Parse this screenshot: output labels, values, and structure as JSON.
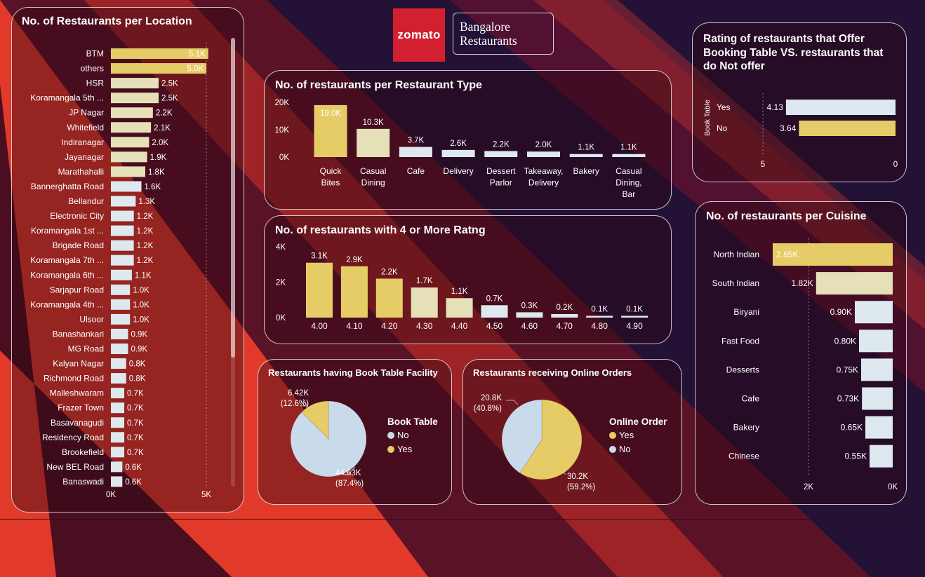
{
  "header": {
    "logo_text": "zomato",
    "title_line1": "Bangalore",
    "title_line2": "Restaurants"
  },
  "colors": {
    "yellow": "#e6cc67",
    "pale": "#e5e0b8",
    "light": "#dde9ee",
    "pie_blue": "#c9dbeb"
  },
  "location_chart": {
    "title": "No. of Restaurants per Location",
    "chart_data": {
      "type": "bar",
      "orientation": "horizontal",
      "categories": [
        "BTM",
        "others",
        "HSR",
        "Koramangala 5th ...",
        "JP Nagar",
        "Whitefield",
        "Indiranagar",
        "Jayanagar",
        "Marathahalli",
        "Bannerghatta Road",
        "Bellandur",
        "Electronic City",
        "Koramangala 1st ...",
        "Brigade Road",
        "Koramangala 7th ...",
        "Koramangala 6th ...",
        "Sarjapur Road",
        "Koramangala 4th ...",
        "Ulsoor",
        "Banashankari",
        "MG Road",
        "Kalyan Nagar",
        "Richmond Road",
        "Malleshwaram",
        "Frazer Town",
        "Basavanagudi",
        "Residency Road",
        "Brookefield",
        "New BEL Road",
        "Banaswadi"
      ],
      "values": [
        5100,
        5000,
        2500,
        2500,
        2200,
        2100,
        2000,
        1900,
        1800,
        1600,
        1300,
        1200,
        1200,
        1200,
        1200,
        1100,
        1000,
        1000,
        1000,
        900,
        900,
        800,
        800,
        700,
        700,
        700,
        700,
        700,
        600,
        600
      ],
      "data_labels": [
        "5.1K",
        "5.0K",
        "2.5K",
        "2.5K",
        "2.2K",
        "2.1K",
        "2.0K",
        "1.9K",
        "1.8K",
        "1.6K",
        "1.3K",
        "1.2K",
        "1.2K",
        "1.2K",
        "1.2K",
        "1.1K",
        "1.0K",
        "1.0K",
        "1.0K",
        "0.9K",
        "0.9K",
        "0.8K",
        "0.8K",
        "0.7K",
        "0.7K",
        "0.7K",
        "0.7K",
        "0.7K",
        "0.6K",
        "0.6K"
      ],
      "xlim": [
        0,
        5000
      ],
      "x_ticks": [
        "0K",
        "5K"
      ]
    }
  },
  "type_chart": {
    "title": "No. of restaurants per Restaurant Type",
    "chart_data": {
      "type": "bar",
      "categories": [
        [
          "Quick",
          "Bites"
        ],
        [
          "Casual",
          "Dining"
        ],
        [
          "Cafe"
        ],
        [
          "Delivery"
        ],
        [
          "Dessert",
          "Parlor"
        ],
        [
          "Takeaway,",
          "Delivery"
        ],
        [
          "Bakery"
        ],
        [
          "Casual",
          "Dining,",
          "Bar"
        ]
      ],
      "values": [
        19000,
        10300,
        3700,
        2600,
        2200,
        2000,
        1100,
        1100
      ],
      "data_labels": [
        "19.0K",
        "10.3K",
        "3.7K",
        "2.6K",
        "2.2K",
        "2.0K",
        "1.1K",
        "1.1K"
      ],
      "ylim": [
        0,
        20000
      ],
      "y_ticks": [
        {
          "v": 0,
          "label": "0K"
        },
        {
          "v": 10000,
          "label": "10K"
        },
        {
          "v": 20000,
          "label": "20K"
        }
      ]
    }
  },
  "rating_chart": {
    "title": "No. of restaurants with 4 or More Ratng",
    "chart_data": {
      "type": "bar",
      "categories": [
        "4.00",
        "4.10",
        "4.20",
        "4.30",
        "4.40",
        "4.50",
        "4.60",
        "4.70",
        "4.80",
        "4.90"
      ],
      "values": [
        3100,
        2900,
        2200,
        1700,
        1100,
        700,
        300,
        200,
        100,
        100
      ],
      "data_labels": [
        "3.1K",
        "2.9K",
        "2.2K",
        "1.7K",
        "1.1K",
        "0.7K",
        "0.3K",
        "0.2K",
        "0.1K",
        "0.1K"
      ],
      "ylim": [
        0,
        4000
      ],
      "y_ticks": [
        {
          "v": 0,
          "label": "0K"
        },
        {
          "v": 2000,
          "label": "2K"
        },
        {
          "v": 4000,
          "label": "4K"
        }
      ]
    }
  },
  "booking_rating_chart": {
    "title_lines": [
      "Rating of restaurants that Offer",
      "Booking Table VS. restaurants that",
      "do Not offer"
    ],
    "chart_data": {
      "type": "bar",
      "orientation": "horizontal",
      "ylabel": "Book Table",
      "categories": [
        "Yes",
        "No"
      ],
      "values": [
        4.13,
        3.64
      ],
      "data_labels": [
        "4.13",
        "3.64"
      ],
      "xlim": [
        5,
        0
      ],
      "x_ticks": [
        "5",
        "0"
      ]
    }
  },
  "cuisine_chart": {
    "title": "No. of restaurants per Cuisine",
    "chart_data": {
      "type": "bar",
      "orientation": "horizontal",
      "categories": [
        "North Indian",
        "South Indian",
        "Biryani",
        "Fast Food",
        "Desserts",
        "Cafe",
        "Bakery",
        "Chinese"
      ],
      "values": [
        2850,
        1820,
        900,
        800,
        750,
        730,
        650,
        550
      ],
      "data_labels": [
        "2.85K",
        "1.82K",
        "0.90K",
        "0.80K",
        "0.75K",
        "0.73K",
        "0.65K",
        "0.55K"
      ],
      "xlim": [
        2000,
        0
      ],
      "x_ticks": [
        "2K",
        "0K"
      ]
    }
  },
  "book_table_pie": {
    "title": "Restaurants having Book Table Facility",
    "legend_title": "Book Table",
    "chart_data": {
      "type": "pie",
      "labels": [
        "No",
        "Yes"
      ],
      "values": [
        44630,
        6420
      ],
      "value_labels": [
        "44.63K",
        "6.42K"
      ],
      "percent_labels": [
        "(87.4%)",
        "(12.6%)"
      ]
    }
  },
  "online_order_pie": {
    "title": "Restaurants receiving Online Orders",
    "legend_title": "Online Order",
    "chart_data": {
      "type": "pie",
      "labels": [
        "Yes",
        "No"
      ],
      "values": [
        30200,
        20800
      ],
      "value_labels": [
        "30.2K",
        "20.8K"
      ],
      "percent_labels": [
        "(59.2%)",
        "(40.8%)"
      ]
    }
  }
}
